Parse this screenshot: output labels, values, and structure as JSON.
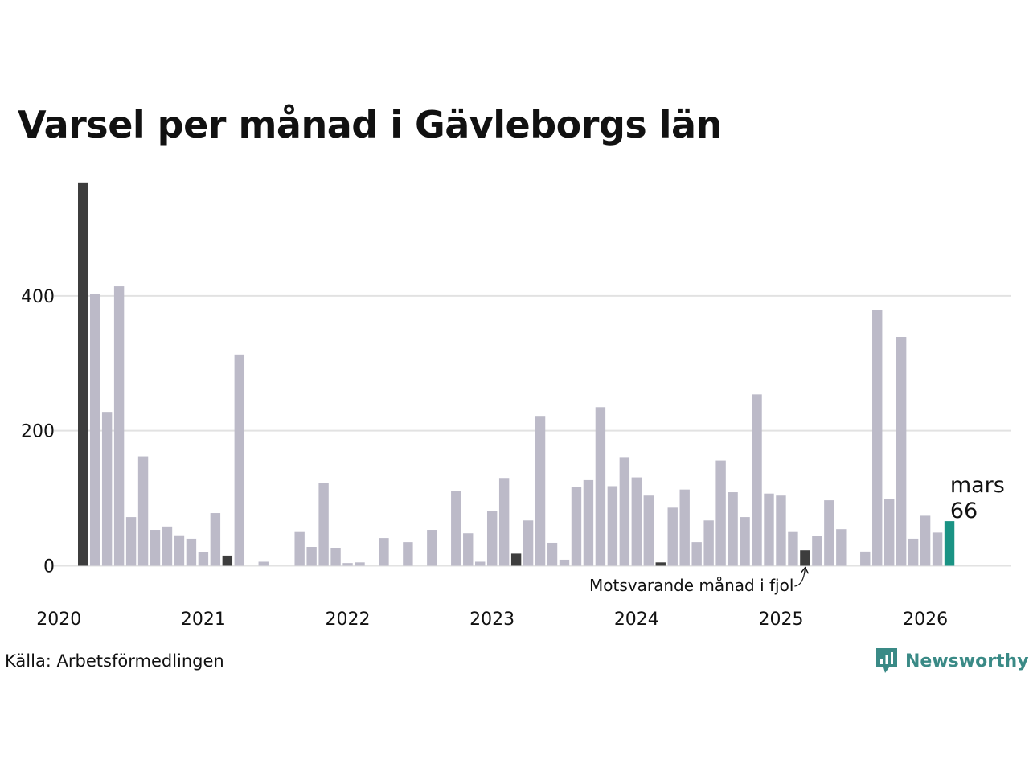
{
  "title": "Varsel per månad i Gävleborgs län",
  "source": "Källa: Arbetsförmedlingen",
  "brand": "Newsworthy",
  "colors": {
    "bar": "#bcbac8",
    "same_month": "#3d3d3d",
    "latest": "#1a9384",
    "grid": "#e2e2e2",
    "brand": "#3a8a86"
  },
  "chart_data": {
    "type": "bar",
    "title": "Varsel per månad i Gävleborgs län",
    "xlabel": "",
    "ylabel": "",
    "ylim": [
      0,
      570
    ],
    "yticks": [
      0,
      200,
      400
    ],
    "x_tick_labels": [
      "2020",
      "2021",
      "2022",
      "2023",
      "2024",
      "2025",
      "2026"
    ],
    "start": "2020-03",
    "values": [
      568,
      403,
      228,
      414,
      72,
      162,
      53,
      58,
      45,
      40,
      20,
      78,
      15,
      313,
      0,
      6,
      0,
      0,
      51,
      28,
      123,
      26,
      4,
      5,
      0,
      41,
      0,
      35,
      0,
      53,
      0,
      111,
      48,
      6,
      81,
      129,
      18,
      67,
      222,
      34,
      9,
      117,
      127,
      235,
      118,
      161,
      131,
      104,
      5,
      86,
      113,
      35,
      67,
      156,
      109,
      72,
      254,
      107,
      104,
      51,
      23,
      44,
      97,
      54,
      0,
      21,
      379,
      99,
      339,
      40,
      74,
      49,
      66
    ],
    "same_month_indices": [
      0,
      12,
      36,
      48,
      60
    ],
    "latest_index": 72,
    "latest_label": "mars",
    "latest_value": "66",
    "annotation": "Motsvarande månad i fjol"
  }
}
